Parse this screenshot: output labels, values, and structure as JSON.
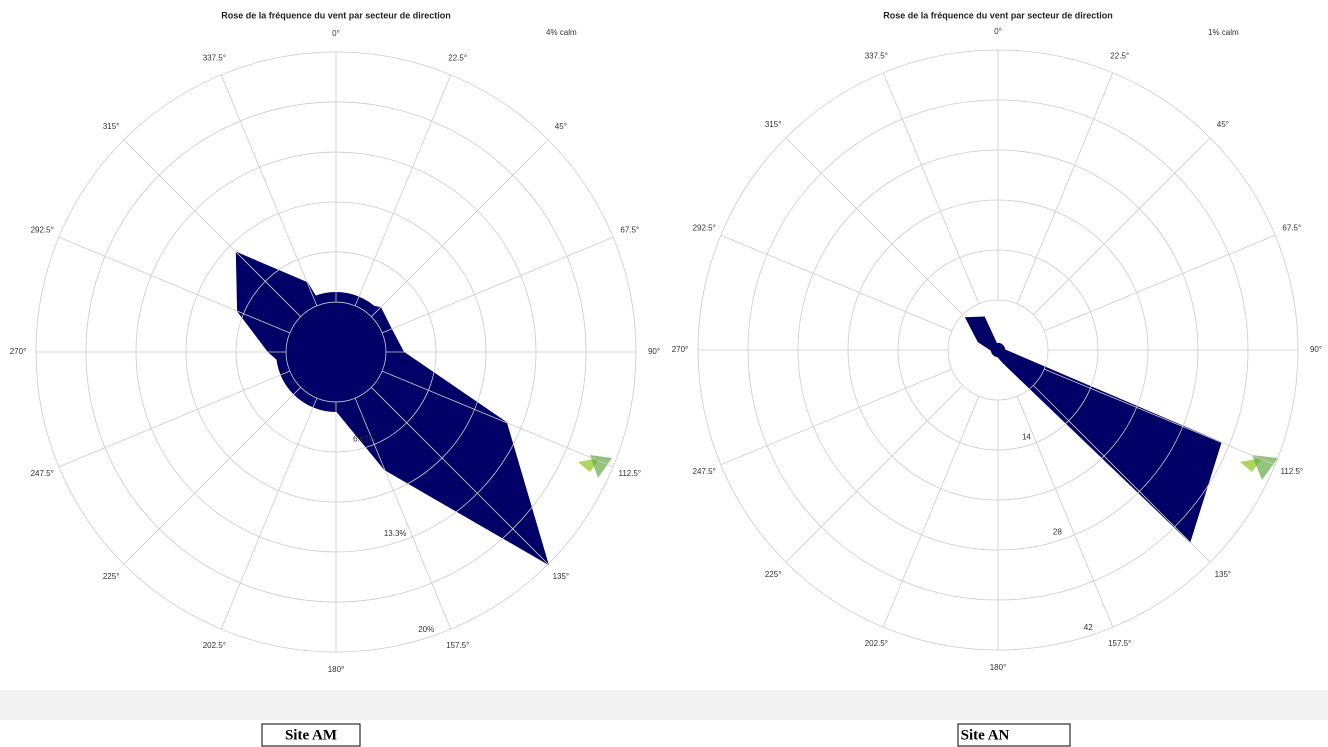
{
  "chart_data": [
    {
      "type": "wind_rose",
      "title": "Rose de la fréquence du vent par secteur de direction",
      "annotation": "4% calm",
      "calm": 4,
      "categories": [
        "0°",
        "22.5°",
        "45°",
        "67.5°",
        "90°",
        "112.5°",
        "135°",
        "157.5°",
        "180°",
        "202.5°",
        "225°",
        "247.5°",
        "270°",
        "292.5°",
        "315°",
        "337.5°"
      ],
      "values": [
        1.5,
        3.5,
        4.2,
        4,
        4.5,
        12.3,
        20,
        8.5,
        3.9,
        3,
        3.5,
        3.3,
        4.5,
        7.1,
        9.4,
        5
      ],
      "color": "#000066",
      "rlim": [
        0,
        20
      ],
      "rgrid": [
        3.33,
        6.67,
        10,
        13.33,
        16.67,
        20
      ],
      "rticks": [
        {
          "value": 6.67,
          "label": "6.67%"
        },
        {
          "value": 13.3,
          "label": "13.3%"
        },
        {
          "value": 20,
          "label": "20%"
        }
      ],
      "caption": "Site AM"
    },
    {
      "type": "wind_rose",
      "title": "Rose de la fréquence du vent par secteur de direction",
      "annotation": "1% calm",
      "calm": 1,
      "categories": [
        "0°",
        "22.5°",
        "45°",
        "67.5°",
        "90°",
        "112.5°",
        "135°",
        "157.5°",
        "180°",
        "202.5°",
        "225°",
        "247.5°",
        "270°",
        "292.5°",
        "315°",
        "337.5°"
      ],
      "values": [
        0.5,
        0.5,
        0.5,
        0.5,
        1,
        33.8,
        38,
        2,
        1,
        0.5,
        0.5,
        0.5,
        1,
        3,
        6.4,
        5
      ],
      "color": "#000066",
      "rlim": [
        0,
        42
      ],
      "rgrid": [
        7,
        14,
        21,
        28,
        35,
        42
      ],
      "rticks": [
        14,
        28,
        42
      ],
      "caption": "Site AN"
    }
  ]
}
